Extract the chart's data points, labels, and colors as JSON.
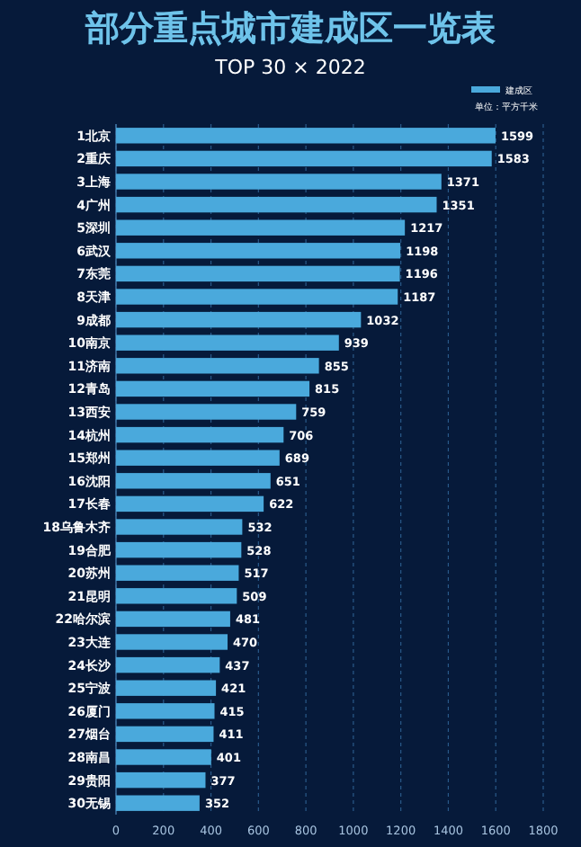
{
  "chart_data": {
    "type": "bar",
    "orientation": "horizontal",
    "title": "部分重点城市建成区一览表",
    "subtitle": "TOP 30 × 2022",
    "categories": [
      "1北京",
      "2重庆",
      "3上海",
      "4广州",
      "5深圳",
      "6武汉",
      "7东莞",
      "8天津",
      "9成都",
      "10南京",
      "11济南",
      "12青岛",
      "13西安",
      "14杭州",
      "15郑州",
      "16沈阳",
      "17长春",
      "18乌鲁木齐",
      "19合肥",
      "20苏州",
      "21昆明",
      "22哈尔滨",
      "23大连",
      "24长沙",
      "25宁波",
      "26厦门",
      "27烟台",
      "28南昌",
      "29贵阳",
      "30无锡"
    ],
    "series": [
      {
        "name": "建成区",
        "color": "#4aa9dc",
        "values": [
          1599,
          1583,
          1371,
          1351,
          1217,
          1198,
          1196,
          1187,
          1032,
          939,
          855,
          815,
          759,
          706,
          689,
          651,
          622,
          532,
          528,
          517,
          509,
          481,
          470,
          437,
          421,
          415,
          411,
          401,
          377,
          352
        ]
      }
    ],
    "xlim": [
      0,
      1800
    ],
    "xticks": [
      0,
      200,
      400,
      600,
      800,
      1000,
      1200,
      1400,
      1600,
      1800
    ],
    "grid": "x",
    "legend": "top right",
    "data_labels": true,
    "annotations": [
      "单位：平方千米"
    ]
  }
}
